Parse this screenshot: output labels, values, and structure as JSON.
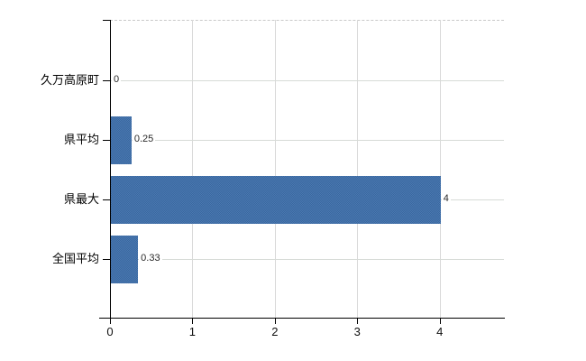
{
  "chart_data": {
    "type": "bar",
    "orientation": "horizontal",
    "title": "",
    "xlabel": "",
    "ylabel": "",
    "categories": [
      "久万高原町",
      "県平均",
      "県最大",
      "全国平均"
    ],
    "values": [
      0,
      0.25,
      4,
      0.33
    ],
    "value_labels": [
      "0",
      "0.25",
      "4",
      "0.33"
    ],
    "xticks": [
      0,
      1,
      2,
      3,
      4
    ],
    "xtick_labels": [
      "0",
      "1",
      "2",
      "3",
      "4"
    ],
    "xlim": [
      0,
      4.78
    ],
    "grid": true,
    "legend": false,
    "bar_color": "#416fa6",
    "gridline_color": "#d9d9d9",
    "axis_color": "#000000",
    "background_color": "#ffffff"
  }
}
